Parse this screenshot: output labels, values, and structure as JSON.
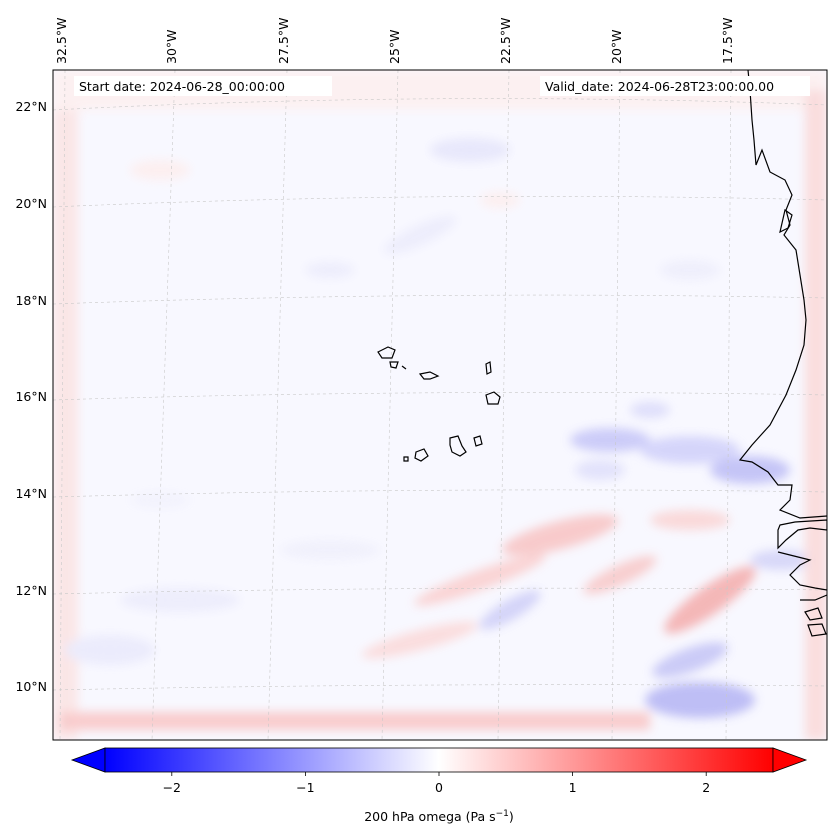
{
  "map": {
    "title_left_label": "Start date:",
    "start_date": "Start date: 2024-06-28_00:00:00",
    "valid_date": "Valid_date: 2024-06-28T23:00:00.00",
    "projection": "Lambert conformal",
    "variable": "200 hPa omega",
    "units": "Pa s",
    "units_exponent": "−1",
    "longitude_labels": [
      "32.5°W",
      "30°W",
      "27.5°W",
      "25°W",
      "22.5°W",
      "20°W",
      "17.5°W"
    ],
    "latitude_labels": [
      "22°N",
      "20°N",
      "18°N",
      "16°N",
      "14°N",
      "12°N",
      "10°N"
    ],
    "features": [
      "Cape Verde islands",
      "West African coastline (Senegal, Mauritania, Gambia, Guinea-Bissau)"
    ]
  },
  "colorbar": {
    "colormap": "bwr",
    "min": -2.5,
    "max": 2.5,
    "extend": "both",
    "tick_labels": [
      "−2",
      "−1",
      "0",
      "1",
      "2"
    ],
    "tick_values": [
      -2,
      -1,
      0,
      1,
      2
    ],
    "label_prefix": "200 hPa omega (Pa s",
    "label_exponent": "−1",
    "label_suffix": ")",
    "colors": {
      "low": "#0000ff",
      "mid": "#ffffff",
      "high": "#ff0000"
    }
  }
}
